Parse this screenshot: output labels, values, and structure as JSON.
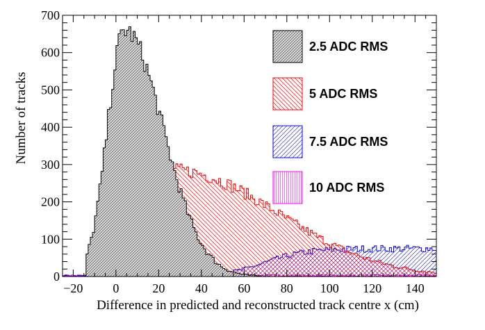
{
  "chart_data": {
    "type": "histogram",
    "xlabel": "Difference in predicted and reconstructed track centre x (cm)",
    "ylabel": "Number of tracks",
    "xlim": [
      -25,
      150
    ],
    "ylim": [
      0,
      700
    ],
    "x_ticks": [
      -20,
      0,
      20,
      40,
      60,
      80,
      100,
      120,
      140
    ],
    "y_ticks": [
      0,
      100,
      200,
      300,
      400,
      500,
      600,
      700
    ],
    "bin_width": 1,
    "grid": false,
    "legend_position": "top-right",
    "series": [
      {
        "name": "2.5 ADC RMS",
        "color": "#000000",
        "hatch": "cross-diagonal",
        "fill": "light-gray",
        "shape": {
          "type": "skewed-peak",
          "peak_x": 4,
          "peak_y": 660,
          "rise_width": 8,
          "tail_scale": 18,
          "start_x": -14
        }
      },
      {
        "name": "5 ADC RMS",
        "color": "#ff0000",
        "hatch": "diagonal",
        "shape": {
          "type": "skewed-peak",
          "peak_x": 27,
          "peak_y": 285,
          "rise_width": 15,
          "tail_scale": 48,
          "start_x": -10
        }
      },
      {
        "name": "7.5 ADC RMS",
        "color": "#0000ff",
        "hatch": "diagonal",
        "shape": {
          "type": "rising-plateau",
          "onset_x": 0,
          "mid_x": 70,
          "plateau_y": 75,
          "rise_scale": 22
        }
      },
      {
        "name": "10 ADC RMS",
        "color": "#ff00ff",
        "hatch": "vertical",
        "shape": {
          "type": "flat",
          "level_y": 3
        }
      }
    ]
  }
}
